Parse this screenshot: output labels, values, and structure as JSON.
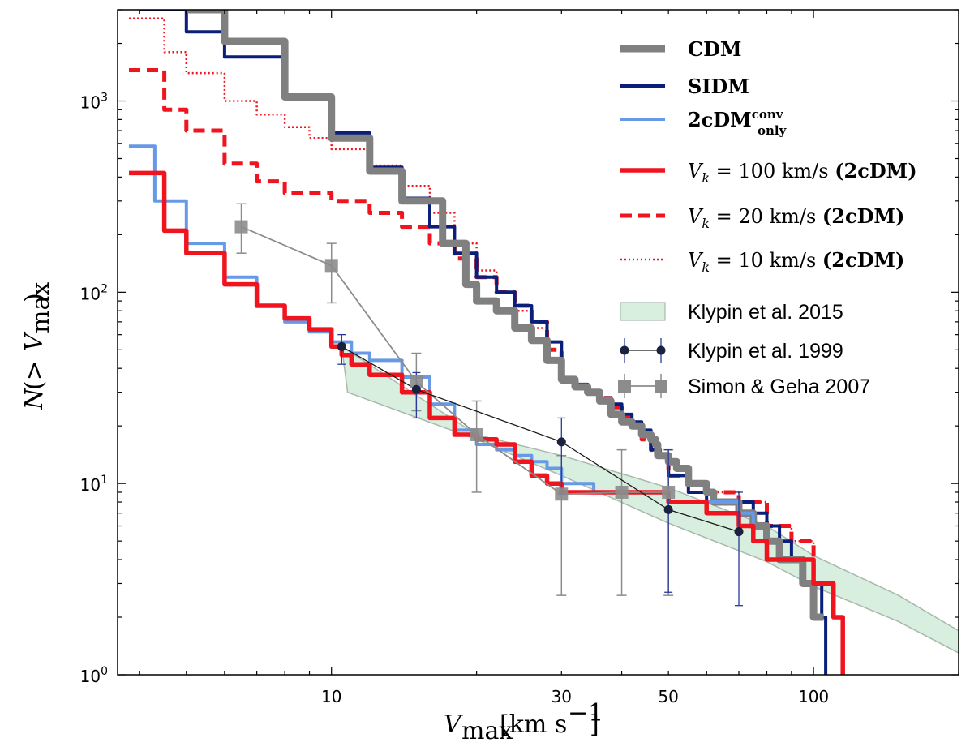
{
  "chart_data": {
    "type": "line",
    "xscale": "log",
    "yscale": "log",
    "xlim": [
      3.6,
      200
    ],
    "ylim": [
      1,
      3000
    ],
    "xlabel": "V_max [km s^-1]",
    "ylabel": "N(>V_max)",
    "x_ticks": [
      10,
      30,
      50,
      100
    ],
    "x_tick_labels": [
      "10",
      "30",
      "50",
      "100"
    ],
    "y_ticks": [
      1,
      10,
      100,
      1000
    ],
    "y_tick_labels": [
      {
        "base": "10",
        "exp": "0"
      },
      {
        "base": "10",
        "exp": "1"
      },
      {
        "base": "10",
        "exp": "2"
      },
      {
        "base": "10",
        "exp": "3"
      }
    ],
    "legend_position": "top-right",
    "colors": {
      "cdm": "#808080",
      "sidm": "#0a1f7a",
      "conv": "#6699e6",
      "red": "#f0141e",
      "band_fill": "#d8eedf",
      "band_edge": "#a8b8ac",
      "klypin1999": "#1a2240",
      "klypin1999_err": "#2a3a9a",
      "simon": "#8c8c8c"
    },
    "series": [
      {
        "name": "CDM",
        "key": "cdm",
        "x": [
          5,
          6,
          8,
          10,
          12,
          14,
          17,
          19,
          20,
          22,
          24,
          26,
          28,
          30,
          32,
          34,
          36,
          38,
          40,
          42,
          44,
          46,
          47,
          47.5,
          50,
          52,
          55,
          60,
          62,
          68,
          70,
          72,
          75,
          78,
          80,
          82,
          85,
          90,
          95,
          100,
          105
        ],
        "y": [
          3000,
          2050,
          1050,
          640,
          430,
          300,
          180,
          110,
          90,
          80,
          65,
          56,
          44,
          35,
          32,
          30,
          27,
          23,
          21,
          20,
          18,
          17,
          16,
          14,
          13,
          12,
          10,
          9,
          8,
          8,
          7,
          7,
          6,
          6,
          5,
          5,
          4,
          4,
          3,
          2,
          2
        ]
      },
      {
        "name": "SIDM",
        "key": "sidm",
        "x": [
          4,
          5,
          6,
          8,
          10,
          12,
          14,
          16,
          18,
          20,
          22,
          24,
          26,
          28,
          30,
          32,
          34,
          36,
          38,
          40,
          42,
          44,
          46,
          48,
          50,
          55,
          60,
          70,
          75,
          80,
          85,
          90,
          95,
          100,
          104,
          106
        ],
        "y": [
          3000,
          2300,
          1700,
          1050,
          680,
          450,
          310,
          220,
          160,
          120,
          100,
          85,
          70,
          55,
          34,
          33,
          30,
          28,
          26,
          23,
          21,
          19,
          15,
          14,
          11,
          9,
          8,
          8,
          7,
          6,
          5,
          4,
          4,
          3,
          2,
          1
        ]
      },
      {
        "name": "2cDM_only^conv",
        "key": "conv",
        "x": [
          3.8,
          4.3,
          5,
          6,
          7,
          8,
          9,
          10,
          11,
          12,
          14,
          16,
          18,
          20,
          22,
          24,
          26,
          28,
          30,
          35,
          40,
          45,
          50,
          55,
          60,
          70,
          75,
          80,
          90,
          100,
          110
        ],
        "y": [
          580,
          300,
          180,
          120,
          85,
          70,
          62,
          55,
          48,
          44,
          36,
          26,
          19,
          16,
          15,
          14,
          13,
          12,
          10,
          9,
          9,
          9,
          8,
          8,
          8,
          7,
          5,
          4,
          4,
          3,
          2
        ]
      },
      {
        "name": "V_k=100 km/s (2cDM)",
        "key": "red",
        "style": "solid",
        "x": [
          3.8,
          4.5,
          5,
          6,
          7,
          8,
          9,
          10,
          10.5,
          11,
          12,
          14,
          16,
          18,
          20,
          22,
          24,
          26,
          28,
          30,
          32,
          35,
          40,
          45,
          50,
          55,
          60,
          65,
          70,
          75,
          80,
          90,
          100,
          110,
          115
        ],
        "y": [
          420,
          210,
          160,
          110,
          85,
          73,
          64,
          52,
          47,
          42,
          37,
          30,
          22,
          18,
          17,
          16,
          13,
          11,
          10,
          9,
          9,
          9,
          9,
          9,
          8,
          8,
          7,
          7,
          6,
          5,
          4,
          4,
          3,
          2,
          1
        ]
      },
      {
        "name": "V_k=20 km/s (2cDM)",
        "key": "red",
        "style": "dashed",
        "x": [
          3.8,
          4.5,
          5,
          6,
          7,
          8,
          10,
          12,
          14,
          16,
          18,
          20,
          22,
          24,
          26,
          28,
          30,
          32,
          34,
          36,
          38,
          40,
          42,
          44,
          46,
          48,
          50,
          55,
          60,
          65,
          70,
          80,
          90,
          100,
          110
        ],
        "y": [
          1450,
          900,
          700,
          470,
          380,
          330,
          300,
          260,
          220,
          180,
          150,
          120,
          100,
          85,
          70,
          50,
          35,
          32,
          30,
          28,
          25,
          22,
          20,
          17,
          15,
          14,
          11,
          10,
          9,
          9,
          8,
          6,
          5,
          3,
          2
        ]
      },
      {
        "name": "V_k=10 km/s (2cDM)",
        "key": "red",
        "style": "dotted",
        "x": [
          3.8,
          4.5,
          5,
          6,
          7,
          8,
          9,
          10,
          12,
          14,
          16,
          18,
          20,
          22,
          24,
          26,
          28,
          30,
          32,
          34,
          36,
          38,
          40,
          42,
          44,
          46,
          48,
          50,
          55,
          60,
          65,
          70,
          80,
          90,
          100,
          110
        ],
        "y": [
          2700,
          1800,
          1400,
          1000,
          850,
          730,
          640,
          560,
          460,
          360,
          260,
          180,
          130,
          100,
          80,
          65,
          45,
          34,
          33,
          30,
          28,
          26,
          22,
          20,
          17,
          15,
          14,
          11,
          10,
          9,
          9,
          8,
          6,
          5,
          3,
          2
        ]
      }
    ],
    "klypin2015_band": {
      "name": "Klypin et al. 2015",
      "x_upper": [
        10.5,
        20,
        30,
        50,
        80,
        100,
        150,
        200
      ],
      "y_upper": [
        52,
        18,
        14,
        9.5,
        6,
        4.2,
        2.6,
        1.7
      ],
      "x_lower": [
        10.8,
        20,
        30,
        50,
        80,
        100,
        150,
        200
      ],
      "y_lower": [
        30,
        17,
        11,
        6.2,
        3.9,
        2.9,
        1.9,
        1.3
      ]
    },
    "klypin1999": {
      "name": "Klypin et al. 1999",
      "x": [
        10.5,
        15,
        30,
        50,
        70
      ],
      "y": [
        52,
        31,
        16.5,
        7.3,
        5.6
      ],
      "y_low": [
        42,
        22,
        8.8,
        2.7,
        2.3
      ],
      "y_high": [
        60,
        38,
        22,
        15,
        9
      ]
    },
    "simon_geha_2007": {
      "name": "Simon & Geha 2007",
      "x": [
        6.5,
        10,
        15,
        20,
        30,
        40,
        50
      ],
      "y": [
        220,
        138,
        34,
        18,
        8.8,
        9,
        9
      ],
      "y_low": [
        160,
        88,
        24,
        9,
        2.6,
        2.6,
        2.6
      ],
      "y_high": [
        290,
        180,
        48,
        27,
        14,
        15,
        15
      ]
    },
    "legend": [
      {
        "key": "cdm",
        "kind": "thick",
        "label": "CDM",
        "font": "bold"
      },
      {
        "key": "sidm",
        "kind": "line",
        "label": "SIDM",
        "font": "bold"
      },
      {
        "key": "conv",
        "kind": "line",
        "label": "2cDM",
        "sup": "conv",
        "sub": "only",
        "font": "bold"
      },
      {
        "key": "red",
        "kind": "solid",
        "label_math": "V_k = 100 km/s",
        "label_tail": "(2cDM)"
      },
      {
        "key": "red",
        "kind": "dashed",
        "label_math": "V_k = 20 km/s",
        "label_tail": "(2cDM)"
      },
      {
        "key": "red",
        "kind": "dotted",
        "label_math": "V_k = 10 km/s",
        "label_tail": "(2cDM)"
      },
      {
        "key": "band",
        "kind": "patch",
        "label": "Klypin et al. 2015"
      },
      {
        "key": "klypin1999",
        "kind": "marker-circle",
        "label": "Klypin et al. 1999"
      },
      {
        "key": "simon",
        "kind": "marker-square",
        "label": "Simon & Geha 2007"
      }
    ]
  }
}
